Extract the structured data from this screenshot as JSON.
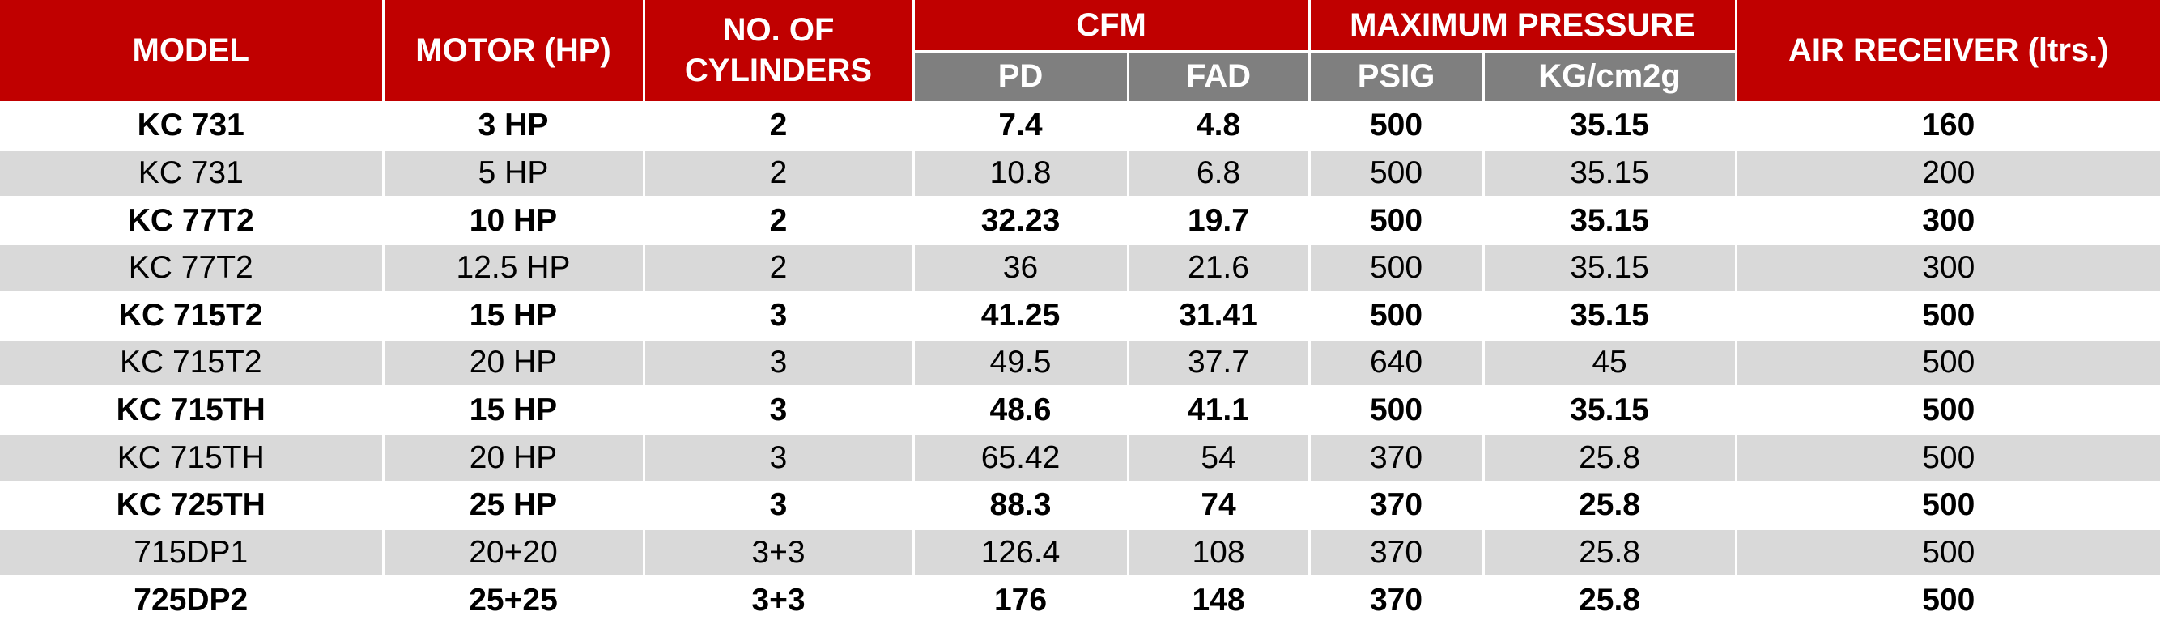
{
  "colors": {
    "header_red": "#c00000",
    "subheader_grey": "#7f7f7f",
    "row_alt_grey": "#d9d9d9",
    "row_white": "#ffffff"
  },
  "headers": {
    "model": "MODEL",
    "motor": "MOTOR (HP)",
    "cylinders_line1": "NO. OF",
    "cylinders_line2": "CYLINDERS",
    "cfm": "CFM",
    "pd": "PD",
    "fad": "FAD",
    "max_pressure": "MAXIMUM PRESSURE",
    "psig": "PSIG",
    "kg": "KG/cm2g",
    "air_receiver": "AIR RECEIVER (ltrs.)"
  },
  "rows": [
    {
      "model": "KC 731",
      "motor": "3 HP",
      "cylinders": "2",
      "pd": "7.4",
      "fad": "4.8",
      "psig": "500",
      "kg": "35.15",
      "receiver": "160"
    },
    {
      "model": "KC 731",
      "motor": "5 HP",
      "cylinders": "2",
      "pd": "10.8",
      "fad": "6.8",
      "psig": "500",
      "kg": "35.15",
      "receiver": "200"
    },
    {
      "model": "KC 77T2",
      "motor": "10 HP",
      "cylinders": "2",
      "pd": "32.23",
      "fad": "19.7",
      "psig": "500",
      "kg": "35.15",
      "receiver": "300"
    },
    {
      "model": "KC 77T2",
      "motor": "12.5 HP",
      "cylinders": "2",
      "pd": "36",
      "fad": "21.6",
      "psig": "500",
      "kg": "35.15",
      "receiver": "300"
    },
    {
      "model": "KC 715T2",
      "motor": "15 HP",
      "cylinders": "3",
      "pd": "41.25",
      "fad": "31.41",
      "psig": "500",
      "kg": "35.15",
      "receiver": "500"
    },
    {
      "model": "KC 715T2",
      "motor": "20 HP",
      "cylinders": "3",
      "pd": "49.5",
      "fad": "37.7",
      "psig": "640",
      "kg": "45",
      "receiver": "500"
    },
    {
      "model": "KC 715TH",
      "motor": "15 HP",
      "cylinders": "3",
      "pd": "48.6",
      "fad": "41.1",
      "psig": "500",
      "kg": "35.15",
      "receiver": "500"
    },
    {
      "model": "KC 715TH",
      "motor": "20 HP",
      "cylinders": "3",
      "pd": "65.42",
      "fad": "54",
      "psig": "370",
      "kg": "25.8",
      "receiver": "500"
    },
    {
      "model": "KC 725TH",
      "motor": "25 HP",
      "cylinders": "3",
      "pd": "88.3",
      "fad": "74",
      "psig": "370",
      "kg": "25.8",
      "receiver": "500"
    },
    {
      "model": "715DP1",
      "motor": "20+20",
      "cylinders": "3+3",
      "pd": "126.4",
      "fad": "108",
      "psig": "370",
      "kg": "25.8",
      "receiver": "500"
    },
    {
      "model": "725DP2",
      "motor": "25+25",
      "cylinders": "3+3",
      "pd": "176",
      "fad": "148",
      "psig": "370",
      "kg": "25.8",
      "receiver": "500"
    }
  ]
}
